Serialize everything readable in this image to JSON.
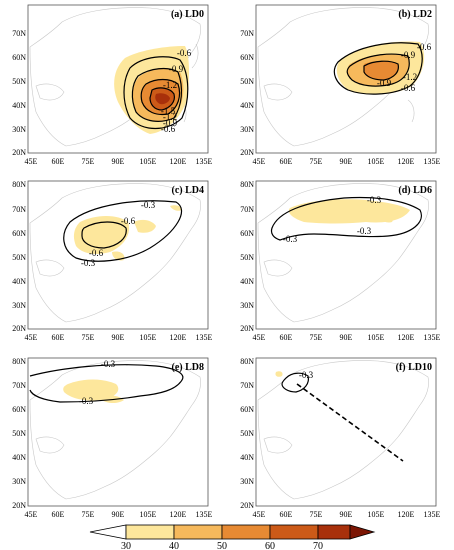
{
  "panels": [
    {
      "id": "a",
      "label": "(a) LD0",
      "contours": [
        {
          "label": "-0.6"
        },
        {
          "label": "-0.9"
        },
        {
          "label": "-1.2"
        },
        {
          "label": "-1.5"
        },
        {
          "label": "-1.2"
        },
        {
          "label": "-0.9"
        },
        {
          "label": "-0.6"
        }
      ]
    },
    {
      "id": "b",
      "label": "(b) LD2",
      "contours": [
        {
          "label": "-0.6"
        },
        {
          "label": "-0.9"
        },
        {
          "label": "-1.2"
        },
        {
          "label": "-0.9"
        },
        {
          "label": "-0.6"
        }
      ]
    },
    {
      "id": "c",
      "label": "(c) LD4",
      "contours": [
        {
          "label": "-0.3"
        },
        {
          "label": "-0.6"
        },
        {
          "label": "-0.6"
        },
        {
          "label": "-0.3"
        }
      ]
    },
    {
      "id": "d",
      "label": "(d) LD6",
      "contours": [
        {
          "label": "-0.3"
        },
        {
          "label": "-0.3"
        },
        {
          "label": "-0.3"
        }
      ]
    },
    {
      "id": "e",
      "label": "(e) LD8",
      "contours": [
        {
          "label": "-0.3"
        },
        {
          "label": "-0.3"
        }
      ]
    },
    {
      "id": "f",
      "label": "(f) LD10",
      "contours": [
        {
          "label": "-0.3"
        }
      ]
    }
  ],
  "axes": {
    "x_ticks": [
      "45E",
      "60E",
      "75E",
      "90E",
      "105E",
      "120E",
      "135E"
    ],
    "y_ticks": [
      "20N",
      "30N",
      "40N",
      "50N",
      "60N",
      "70N",
      "80N"
    ]
  },
  "colorbar": {
    "ticks": [
      "30",
      "40",
      "50",
      "60",
      "70"
    ],
    "colors": [
      "#ffffff",
      "#fde79c",
      "#f6b95c",
      "#e78a33",
      "#cc5a18",
      "#a8300b",
      "#7c1604"
    ]
  },
  "colors": {
    "land_outline": "#c8c8c8",
    "contour": "#000000",
    "frame": "#555555"
  }
}
